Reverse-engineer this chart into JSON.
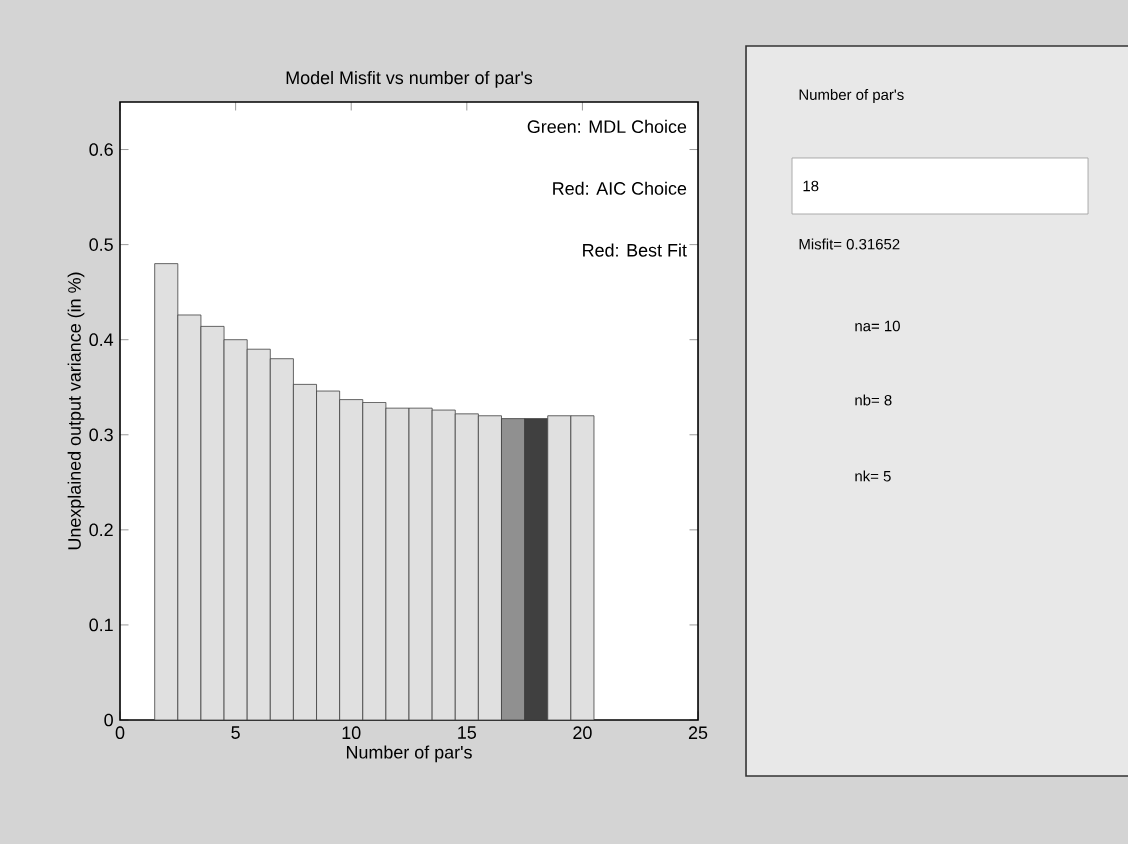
{
  "chart_data": [
    {
      "type": "bar",
      "title": "Model Misfit vs number of par's",
      "xlabel": "Number of par's",
      "ylabel": "Unexplained output variance (in %)",
      "x": [
        2,
        3,
        4,
        5,
        6,
        7,
        8,
        9,
        10,
        11,
        12,
        13,
        14,
        15,
        16,
        17,
        18,
        19,
        20
      ],
      "values": [
        0.48,
        0.426,
        0.414,
        0.4,
        0.39,
        0.38,
        0.353,
        0.346,
        0.337,
        0.334,
        0.328,
        0.328,
        0.326,
        0.322,
        0.32,
        0.317,
        0.317,
        0.32,
        0.32
      ],
      "colors": [
        "#e0e0e0",
        "#e0e0e0",
        "#e0e0e0",
        "#e0e0e0",
        "#e0e0e0",
        "#e0e0e0",
        "#e0e0e0",
        "#e0e0e0",
        "#e0e0e0",
        "#e0e0e0",
        "#e0e0e0",
        "#e0e0e0",
        "#e0e0e0",
        "#e0e0e0",
        "#e0e0e0",
        "#909090",
        "#404040",
        "#e0e0e0",
        "#e0e0e0"
      ],
      "xlim": [
        0,
        25
      ],
      "ylim": [
        0,
        0.65
      ],
      "xticks": [
        0,
        5,
        10,
        15,
        20,
        25
      ],
      "yticks": [
        0,
        0.1,
        0.2,
        0.3,
        0.4,
        0.5,
        0.6
      ],
      "annotations": [
        "Green: MDL Choice",
        "Red: AIC Choice",
        "Red: Best Fit"
      ]
    },
    {
      "type": "other",
      "title": "Number of par's",
      "annotations": [
        "18",
        "Misfit= 0.31652",
        "na= 10",
        "nb= 8",
        "nk= 5"
      ]
    }
  ]
}
